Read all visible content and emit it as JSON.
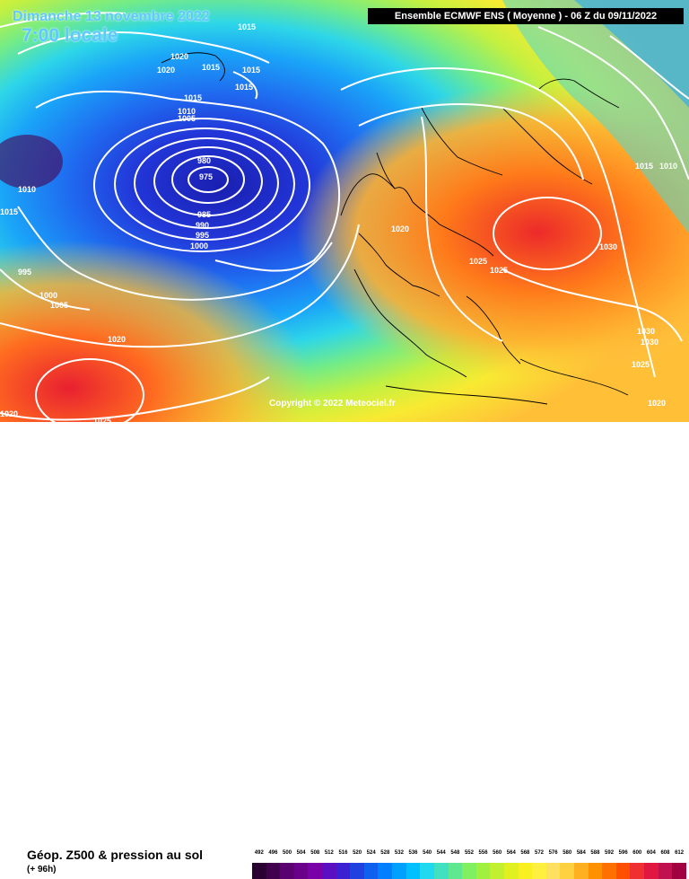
{
  "date_line": "Dimanche 13 novembre 2022",
  "time_line": "7:00 locale",
  "header": "Ensemble ECMWF ENS  ( Moyenne )  -  06 Z du 09/11/2022",
  "copyright": "Copyright © 2022 Meteociel.fr",
  "title": "Géop. Z500 & pression au sol",
  "subtitle": "(+ 96h)",
  "pressure_labels": [
    "1015",
    "1020",
    "1020",
    "1015",
    "1015",
    "1015",
    "1015",
    "1010",
    "1005",
    "980",
    "975",
    "985",
    "990",
    "995",
    "1000",
    "1010",
    "1015",
    "995",
    "1000",
    "1005",
    "1020",
    "1020",
    "1025",
    "1020",
    "1025",
    "1025",
    "1030",
    "1015",
    "1010",
    "1030",
    "1030",
    "1025",
    "1020"
  ],
  "scale_labels": [
    "492",
    "496",
    "500",
    "504",
    "508",
    "512",
    "516",
    "520",
    "524",
    "528",
    "532",
    "536",
    "540",
    "544",
    "548",
    "552",
    "556",
    "560",
    "564",
    "568",
    "572",
    "576",
    "580",
    "584",
    "588",
    "592",
    "596",
    "600",
    "604",
    "608",
    "612"
  ],
  "scale_colors": [
    "#2a0033",
    "#40004d",
    "#5a0070",
    "#6a008a",
    "#7a00a8",
    "#5a10c0",
    "#3a20d0",
    "#2040e0",
    "#1060f0",
    "#0080ff",
    "#00a0ff",
    "#00c0ff",
    "#20d8f0",
    "#40e0c0",
    "#60e890",
    "#80f060",
    "#a0f040",
    "#c0f030",
    "#e0f020",
    "#f8f020",
    "#fff040",
    "#ffe060",
    "#ffd040",
    "#ffb020",
    "#ff9000",
    "#ff7000",
    "#ff5000",
    "#f03030",
    "#e01840",
    "#c01050",
    "#a00040"
  ]
}
